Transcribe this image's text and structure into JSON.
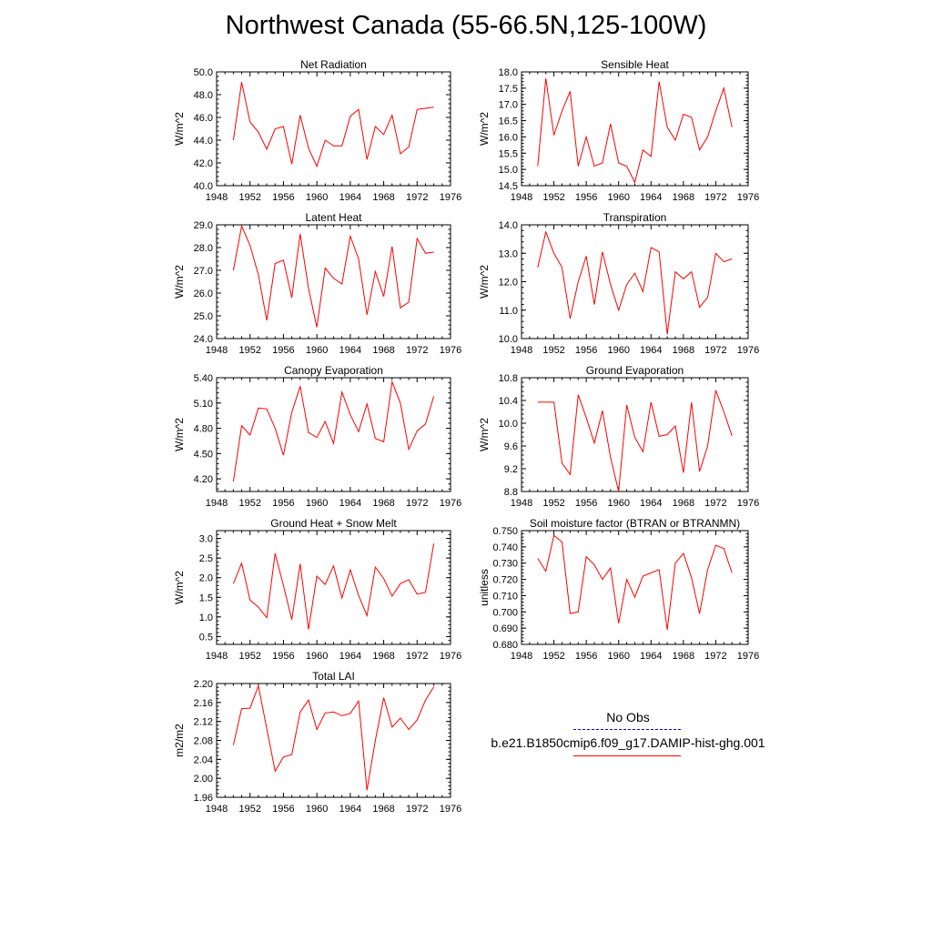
{
  "title": "Northwest Canada (55-66.5N,125-100W)",
  "colors": {
    "model": "#ff0000",
    "obs": "#0000ff",
    "axis": "#000000"
  },
  "legend": {
    "obs_label": "No Obs",
    "model_label": "b.e21.B1850cmip6.f09_g17.DAMIP-hist-ghg.001"
  },
  "chart_data": [
    {
      "type": "line",
      "title": "Net Radiation",
      "ylabel": "W/m^2",
      "xlim": [
        1948,
        1976
      ],
      "xticks": [
        1948,
        1952,
        1956,
        1960,
        1964,
        1968,
        1972,
        1976
      ],
      "ylim": [
        40.0,
        50.0
      ],
      "yticks": [
        "40.0",
        "42.0",
        "44.0",
        "46.0",
        "48.0",
        "50.0"
      ],
      "series": [
        {
          "x": [
            1950,
            1951,
            1952,
            1953,
            1954,
            1955,
            1956,
            1957,
            1958,
            1959,
            1960,
            1961,
            1962,
            1963,
            1964,
            1965,
            1966,
            1967,
            1968,
            1969,
            1970,
            1971,
            1972,
            1973,
            1974
          ],
          "values": [
            44.0,
            49.1,
            45.6,
            44.7,
            43.2,
            45.0,
            45.2,
            41.9,
            46.2,
            43.3,
            41.7,
            44.0,
            43.5,
            43.5,
            46.1,
            46.7,
            42.3,
            45.2,
            44.5,
            46.2,
            42.8,
            43.4,
            46.7,
            46.8,
            46.9
          ]
        }
      ]
    },
    {
      "type": "line",
      "title": "Sensible Heat",
      "ylabel": "W/m^2",
      "xlim": [
        1948,
        1976
      ],
      "xticks": [
        1948,
        1952,
        1956,
        1960,
        1964,
        1968,
        1972,
        1976
      ],
      "ylim": [
        14.5,
        18.0
      ],
      "yticks": [
        "14.5",
        "15.0",
        "15.5",
        "16.0",
        "16.5",
        "17.0",
        "17.5",
        "18.0"
      ],
      "series": [
        {
          "x": [
            1950,
            1951,
            1952,
            1953,
            1954,
            1955,
            1956,
            1957,
            1958,
            1959,
            1960,
            1961,
            1962,
            1963,
            1964,
            1965,
            1966,
            1967,
            1968,
            1969,
            1970,
            1971,
            1972,
            1973,
            1974
          ],
          "values": [
            15.1,
            17.8,
            16.05,
            16.8,
            17.4,
            15.1,
            16.0,
            15.1,
            15.2,
            16.4,
            15.2,
            15.1,
            14.6,
            15.6,
            15.4,
            17.7,
            16.3,
            15.9,
            16.7,
            16.6,
            15.6,
            16.0,
            16.8,
            17.5,
            16.3
          ]
        }
      ]
    },
    {
      "type": "line",
      "title": "Latent Heat",
      "ylabel": "W/m^2",
      "xlim": [
        1948,
        1976
      ],
      "xticks": [
        1948,
        1952,
        1956,
        1960,
        1964,
        1968,
        1972,
        1976
      ],
      "ylim": [
        24.0,
        29.0
      ],
      "yticks": [
        "24.0",
        "25.0",
        "26.0",
        "27.0",
        "28.0",
        "29.0"
      ],
      "series": [
        {
          "x": [
            1950,
            1951,
            1952,
            1953,
            1954,
            1955,
            1956,
            1957,
            1958,
            1959,
            1960,
            1961,
            1962,
            1963,
            1964,
            1965,
            1966,
            1967,
            1968,
            1969,
            1970,
            1971,
            1972,
            1973,
            1974
          ],
          "values": [
            27.0,
            28.95,
            28.1,
            26.8,
            24.8,
            27.3,
            27.45,
            25.8,
            28.6,
            26.2,
            24.5,
            27.1,
            26.65,
            26.4,
            28.5,
            27.5,
            25.05,
            26.95,
            25.85,
            28.05,
            25.35,
            25.6,
            28.4,
            27.75,
            27.8
          ]
        }
      ]
    },
    {
      "type": "line",
      "title": "Transpiration",
      "ylabel": "W/m^2",
      "xlim": [
        1948,
        1976
      ],
      "xticks": [
        1948,
        1952,
        1956,
        1960,
        1964,
        1968,
        1972,
        1976
      ],
      "ylim": [
        10.0,
        14.0
      ],
      "yticks": [
        "10.0",
        "11.0",
        "12.0",
        "13.0",
        "14.0"
      ],
      "series": [
        {
          "x": [
            1950,
            1951,
            1952,
            1953,
            1954,
            1955,
            1956,
            1957,
            1958,
            1959,
            1960,
            1961,
            1962,
            1963,
            1964,
            1965,
            1966,
            1967,
            1968,
            1969,
            1970,
            1971,
            1972,
            1973,
            1974
          ],
          "values": [
            12.5,
            13.75,
            13.0,
            12.5,
            10.7,
            12.0,
            12.9,
            11.2,
            13.05,
            11.9,
            11.0,
            11.9,
            12.3,
            11.65,
            13.2,
            13.05,
            10.15,
            12.35,
            12.1,
            12.35,
            11.1,
            11.45,
            13.0,
            12.7,
            12.8
          ]
        }
      ]
    },
    {
      "type": "line",
      "title": "Canopy Evaporation",
      "ylabel": "W/m^2",
      "xlim": [
        1948,
        1976
      ],
      "xticks": [
        1948,
        1952,
        1956,
        1960,
        1964,
        1968,
        1972,
        1976
      ],
      "ylim": [
        4.05,
        5.4
      ],
      "yticks": [
        "4.20",
        "4.50",
        "4.80",
        "5.10",
        "5.40"
      ],
      "series": [
        {
          "x": [
            1950,
            1951,
            1952,
            1953,
            1954,
            1955,
            1956,
            1957,
            1958,
            1959,
            1960,
            1961,
            1962,
            1963,
            1964,
            1965,
            1966,
            1967,
            1968,
            1969,
            1970,
            1971,
            1972,
            1973,
            1974
          ],
          "values": [
            4.17,
            4.83,
            4.72,
            5.04,
            5.03,
            4.8,
            4.48,
            4.99,
            5.3,
            4.75,
            4.69,
            4.88,
            4.62,
            5.23,
            4.96,
            4.76,
            5.09,
            4.68,
            4.64,
            5.35,
            5.1,
            4.55,
            4.77,
            4.85,
            5.18
          ]
        }
      ]
    },
    {
      "type": "line",
      "title": "Ground Evaporation",
      "ylabel": "W/m^2",
      "xlim": [
        1948,
        1976
      ],
      "xticks": [
        1948,
        1952,
        1956,
        1960,
        1964,
        1968,
        1972,
        1976
      ],
      "ylim": [
        8.8,
        10.8
      ],
      "yticks": [
        "8.8",
        "9.2",
        "9.6",
        "10.0",
        "10.4",
        "10.8"
      ],
      "series": [
        {
          "x": [
            1950,
            1951,
            1952,
            1953,
            1954,
            1955,
            1956,
            1957,
            1958,
            1959,
            1960,
            1961,
            1962,
            1963,
            1964,
            1965,
            1966,
            1967,
            1968,
            1969,
            1970,
            1971,
            1972,
            1973,
            1974
          ],
          "values": [
            10.37,
            10.37,
            10.37,
            9.3,
            9.1,
            10.5,
            10.1,
            9.65,
            10.22,
            9.4,
            8.8,
            10.32,
            9.75,
            9.5,
            10.37,
            9.77,
            9.8,
            9.95,
            9.13,
            10.37,
            9.15,
            9.6,
            10.58,
            10.2,
            9.78
          ]
        }
      ]
    },
    {
      "type": "line",
      "title": "Ground Heat + Snow Melt",
      "ylabel": "W/m^2",
      "xlim": [
        1948,
        1976
      ],
      "xticks": [
        1948,
        1952,
        1956,
        1960,
        1964,
        1968,
        1972,
        1976
      ],
      "ylim": [
        0.3,
        3.2
      ],
      "yticks": [
        "0.5",
        "1.0",
        "1.5",
        "2.0",
        "2.5",
        "3.0"
      ],
      "series": [
        {
          "x": [
            1950,
            1951,
            1952,
            1953,
            1954,
            1955,
            1956,
            1957,
            1958,
            1959,
            1960,
            1961,
            1962,
            1963,
            1964,
            1965,
            1966,
            1967,
            1968,
            1969,
            1970,
            1971,
            1972,
            1973,
            1974
          ],
          "values": [
            1.85,
            2.37,
            1.43,
            1.25,
            0.98,
            2.62,
            1.8,
            0.93,
            2.35,
            0.68,
            2.04,
            1.83,
            2.3,
            1.48,
            2.2,
            1.55,
            1.03,
            2.27,
            1.98,
            1.53,
            1.85,
            1.95,
            1.58,
            1.63,
            2.87
          ]
        }
      ]
    },
    {
      "type": "line",
      "title": "Soil moisture factor (BTRAN or BTRANMN)",
      "ylabel": "unitless",
      "xlim": [
        1948,
        1976
      ],
      "xticks": [
        1948,
        1952,
        1956,
        1960,
        1964,
        1968,
        1972,
        1976
      ],
      "ylim": [
        0.68,
        0.75
      ],
      "yticks": [
        "0.680",
        "0.690",
        "0.700",
        "0.710",
        "0.720",
        "0.730",
        "0.740",
        "0.750"
      ],
      "series": [
        {
          "x": [
            1950,
            1951,
            1952,
            1953,
            1954,
            1955,
            1956,
            1957,
            1958,
            1959,
            1960,
            1961,
            1962,
            1963,
            1964,
            1965,
            1966,
            1967,
            1968,
            1969,
            1970,
            1971,
            1972,
            1973,
            1974
          ],
          "values": [
            0.733,
            0.725,
            0.747,
            0.743,
            0.699,
            0.7,
            0.734,
            0.729,
            0.72,
            0.727,
            0.693,
            0.72,
            0.709,
            0.722,
            0.724,
            0.726,
            0.689,
            0.73,
            0.736,
            0.721,
            0.699,
            0.726,
            0.741,
            0.739,
            0.724
          ]
        }
      ]
    },
    {
      "type": "line",
      "title": "Total LAI",
      "ylabel": "m2/m2",
      "xlim": [
        1948,
        1976
      ],
      "xticks": [
        1948,
        1952,
        1956,
        1960,
        1964,
        1968,
        1972,
        1976
      ],
      "ylim": [
        1.96,
        2.2
      ],
      "yticks": [
        "1.96",
        "2.00",
        "2.04",
        "2.08",
        "2.12",
        "2.16",
        "2.20"
      ],
      "series": [
        {
          "x": [
            1950,
            1951,
            1952,
            1953,
            1954,
            1955,
            1956,
            1957,
            1958,
            1959,
            1960,
            1961,
            1962,
            1963,
            1964,
            1965,
            1966,
            1967,
            1968,
            1969,
            1970,
            1971,
            1972,
            1973,
            1974
          ],
          "values": [
            2.07,
            2.147,
            2.148,
            2.195,
            2.105,
            2.015,
            2.045,
            2.05,
            2.14,
            2.165,
            2.103,
            2.138,
            2.14,
            2.132,
            2.137,
            2.163,
            1.975,
            2.08,
            2.17,
            2.108,
            2.127,
            2.103,
            2.123,
            2.165,
            2.193
          ]
        }
      ]
    }
  ]
}
